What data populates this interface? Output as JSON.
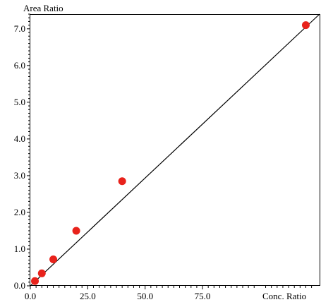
{
  "chart_data": {
    "type": "scatter",
    "title": "",
    "ylabel": "Area Ratio",
    "xlabel": "Conc. Ratio",
    "xlim": [
      0,
      126
    ],
    "ylim": [
      0,
      7.4
    ],
    "x_ticks": [
      0,
      25,
      50,
      75
    ],
    "x_tick_labels": [
      "0.0",
      "25.0",
      "50.0",
      "75.0"
    ],
    "y_ticks": [
      0,
      1,
      2,
      3,
      4,
      5,
      6,
      7
    ],
    "y_tick_labels": [
      "0.0",
      "1.0",
      "2.0",
      "3.0",
      "4.0",
      "5.0",
      "6.0",
      "7.0"
    ],
    "points": [
      {
        "x": 2,
        "y": 0.13
      },
      {
        "x": 5,
        "y": 0.34
      },
      {
        "x": 10,
        "y": 0.72
      },
      {
        "x": 20,
        "y": 1.5
      },
      {
        "x": 40,
        "y": 2.85
      },
      {
        "x": 120,
        "y": 7.1
      }
    ],
    "fit_line": {
      "x": [
        0,
        126
      ],
      "y": [
        0.0,
        7.4
      ]
    },
    "grid": false,
    "colors": {
      "points": "#e8221b",
      "line": "#000000",
      "axes": "#000000"
    }
  }
}
